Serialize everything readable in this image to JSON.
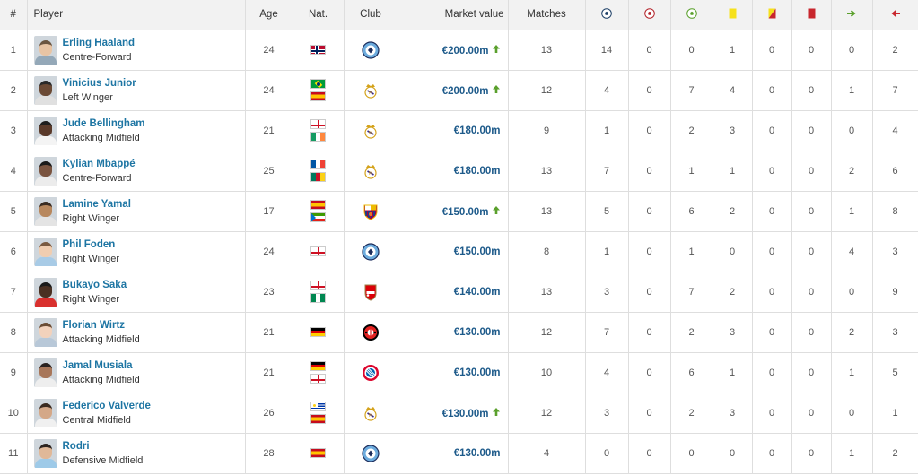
{
  "columns": {
    "index": "#",
    "player": "Player",
    "age": "Age",
    "nat": "Nat.",
    "club": "Club",
    "market_value": "Market value",
    "matches": "Matches",
    "stat_icons": [
      "goals-icon",
      "own-goals-icon",
      "assists-icon",
      "yellow-card-icon",
      "second-yellow-icon",
      "red-card-icon",
      "sub-in-icon",
      "sub-out-icon"
    ]
  },
  "rows": [
    {
      "idx": "1",
      "name": "Erling Haaland",
      "pos": "Centre-Forward",
      "age": "24",
      "flags": [
        "norway"
      ],
      "club": "manchester-city",
      "mv": "€200.00m",
      "up": true,
      "matches": "13",
      "stats": [
        "14",
        "0",
        "0",
        "1",
        "0",
        "0",
        "0",
        "2"
      ]
    },
    {
      "idx": "2",
      "name": "Vinicius Junior",
      "pos": "Left Winger",
      "age": "24",
      "flags": [
        "brazil",
        "spain"
      ],
      "club": "real-madrid",
      "mv": "€200.00m",
      "up": true,
      "matches": "12",
      "stats": [
        "4",
        "0",
        "7",
        "4",
        "0",
        "0",
        "1",
        "7"
      ]
    },
    {
      "idx": "3",
      "name": "Jude Bellingham",
      "pos": "Attacking Midfield",
      "age": "21",
      "flags": [
        "england",
        "ireland"
      ],
      "club": "real-madrid",
      "mv": "€180.00m",
      "up": false,
      "matches": "9",
      "stats": [
        "1",
        "0",
        "2",
        "3",
        "0",
        "0",
        "0",
        "4"
      ]
    },
    {
      "idx": "4",
      "name": "Kylian Mbappé",
      "pos": "Centre-Forward",
      "age": "25",
      "flags": [
        "france",
        "cameroon"
      ],
      "club": "real-madrid",
      "mv": "€180.00m",
      "up": false,
      "matches": "13",
      "stats": [
        "7",
        "0",
        "1",
        "1",
        "0",
        "0",
        "2",
        "6"
      ]
    },
    {
      "idx": "5",
      "name": "Lamine Yamal",
      "pos": "Right Winger",
      "age": "17",
      "flags": [
        "spain",
        "equatorial-guinea"
      ],
      "club": "barcelona",
      "mv": "€150.00m",
      "up": true,
      "matches": "13",
      "stats": [
        "5",
        "0",
        "6",
        "2",
        "0",
        "0",
        "1",
        "8"
      ]
    },
    {
      "idx": "6",
      "name": "Phil Foden",
      "pos": "Right Winger",
      "age": "24",
      "flags": [
        "england"
      ],
      "club": "manchester-city",
      "mv": "€150.00m",
      "up": false,
      "matches": "8",
      "stats": [
        "1",
        "0",
        "1",
        "0",
        "0",
        "0",
        "4",
        "3"
      ]
    },
    {
      "idx": "7",
      "name": "Bukayo Saka",
      "pos": "Right Winger",
      "age": "23",
      "flags": [
        "england",
        "nigeria"
      ],
      "club": "arsenal",
      "mv": "€140.00m",
      "up": false,
      "matches": "13",
      "stats": [
        "3",
        "0",
        "7",
        "2",
        "0",
        "0",
        "0",
        "9"
      ]
    },
    {
      "idx": "8",
      "name": "Florian Wirtz",
      "pos": "Attacking Midfield",
      "age": "21",
      "flags": [
        "germany"
      ],
      "club": "leverkusen",
      "mv": "€130.00m",
      "up": false,
      "matches": "12",
      "stats": [
        "7",
        "0",
        "2",
        "3",
        "0",
        "0",
        "2",
        "3"
      ]
    },
    {
      "idx": "9",
      "name": "Jamal Musiala",
      "pos": "Attacking Midfield",
      "age": "21",
      "flags": [
        "germany",
        "england"
      ],
      "club": "bayern",
      "mv": "€130.00m",
      "up": false,
      "matches": "10",
      "stats": [
        "4",
        "0",
        "6",
        "1",
        "0",
        "0",
        "1",
        "5"
      ]
    },
    {
      "idx": "10",
      "name": "Federico Valverde",
      "pos": "Central Midfield",
      "age": "26",
      "flags": [
        "uruguay",
        "spain"
      ],
      "club": "real-madrid",
      "mv": "€130.00m",
      "up": true,
      "matches": "12",
      "stats": [
        "3",
        "0",
        "2",
        "3",
        "0",
        "0",
        "0",
        "1"
      ]
    },
    {
      "idx": "11",
      "name": "Rodri",
      "pos": "Defensive Midfield",
      "age": "28",
      "flags": [
        "spain"
      ],
      "club": "manchester-city",
      "mv": "€130.00m",
      "up": false,
      "matches": "4",
      "stats": [
        "0",
        "0",
        "0",
        "0",
        "0",
        "0",
        "1",
        "2"
      ]
    }
  ],
  "colors": {
    "link": "#1d75a3",
    "value": "#1d5a8a",
    "up_arrow": "#5aa02c",
    "header_bg": "#f2f2f2"
  }
}
